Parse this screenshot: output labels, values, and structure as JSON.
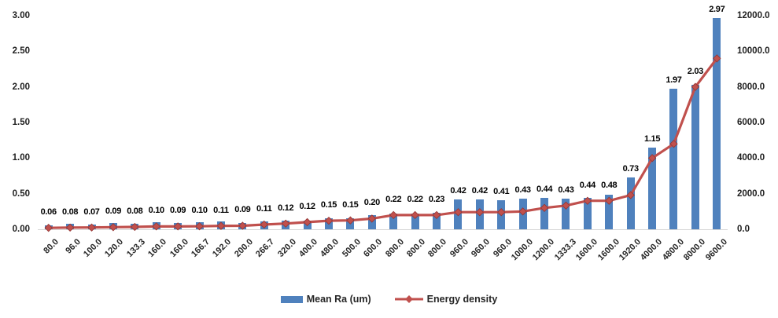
{
  "chart_data": {
    "type": "bar",
    "subtype": "combo-bar-line",
    "title": "",
    "xlabel": "",
    "ylabel_left": "",
    "ylabel_right": "",
    "grid": false,
    "legend_position": "bottom",
    "categories": [
      "80.0",
      "96.0",
      "100.0",
      "120.0",
      "133.3",
      "160.0",
      "160.0",
      "166.7",
      "192.0",
      "200.0",
      "266.7",
      "320.0",
      "400.0",
      "480.0",
      "500.0",
      "600.0",
      "800.0",
      "800.0",
      "800.0",
      "960.0",
      "960.0",
      "960.0",
      "1000.0",
      "1200.0",
      "1333.3",
      "1600.0",
      "1600.0",
      "1920.0",
      "4000.0",
      "4800.0",
      "8000.0",
      "9600.0"
    ],
    "series": [
      {
        "name": "Mean Ra (um)",
        "chart_type": "bar",
        "axis": "left",
        "color": "#4F81BD",
        "values": [
          0.06,
          0.08,
          0.07,
          0.09,
          0.08,
          0.1,
          0.09,
          0.1,
          0.11,
          0.09,
          0.11,
          0.12,
          0.12,
          0.15,
          0.15,
          0.2,
          0.22,
          0.22,
          0.23,
          0.42,
          0.42,
          0.41,
          0.43,
          0.44,
          0.43,
          0.44,
          0.48,
          0.73,
          1.15,
          1.97,
          2.03,
          2.97
        ],
        "data_labels": [
          "0.06",
          "0.08",
          "0.07",
          "0.09",
          "0.08",
          "0.10",
          "0.09",
          "0.10",
          "0.11",
          "0.09",
          "0.11",
          "0.12",
          "0.12",
          "0.15",
          "0.15",
          "0.20",
          "0.22",
          "0.22",
          "0.23",
          "0.42",
          "0.42",
          "0.41",
          "0.43",
          "0.44",
          "0.43",
          "0.44",
          "0.48",
          "0.73",
          "1.15",
          "1.97",
          "2.03",
          "2.97"
        ]
      },
      {
        "name": "Energy density",
        "chart_type": "line",
        "axis": "right",
        "color": "#C0504D",
        "marker": "diamond",
        "values": [
          80,
          96,
          100,
          120,
          133.3,
          160,
          160,
          166.7,
          192,
          200,
          266.7,
          320,
          400,
          480,
          500,
          600,
          800,
          800,
          800,
          960,
          960,
          960,
          1000,
          1200,
          1333.3,
          1600,
          1600,
          1920,
          4000,
          4800,
          8000,
          9600
        ]
      }
    ],
    "left_axis": {
      "min": 0,
      "max": 3,
      "tick_labels": [
        "3.00",
        "2.50",
        "2.00",
        "1.50",
        "1.00",
        "0.50",
        "0.00"
      ],
      "tick_values": [
        3.0,
        2.5,
        2.0,
        1.5,
        1.0,
        0.5,
        0.0
      ]
    },
    "right_axis": {
      "min": 0,
      "max": 12000,
      "tick_labels": [
        "12000.0",
        "10000.0",
        "8000.0",
        "6000.0",
        "4000.0",
        "2000.0",
        "0.0"
      ],
      "tick_values": [
        12000,
        10000,
        8000,
        6000,
        4000,
        2000,
        0
      ]
    }
  },
  "legend": {
    "items": [
      {
        "label": "Mean Ra (um)",
        "swatch": "bar",
        "color": "#4F81BD"
      },
      {
        "label": "Energy density",
        "swatch": "line-diamond",
        "color": "#C0504D"
      }
    ]
  }
}
